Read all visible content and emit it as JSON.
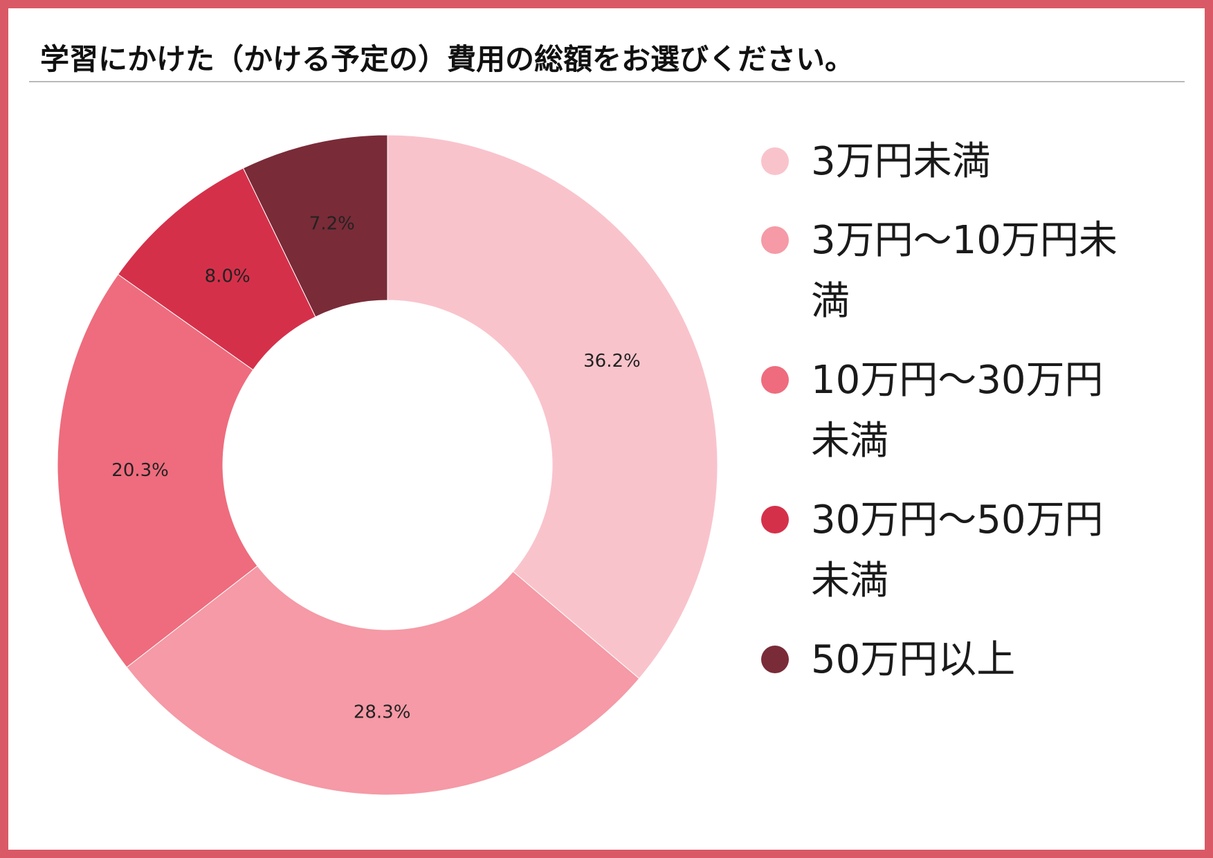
{
  "title": "学習にかけた（かける予定の）費用の総額をお選びください。",
  "chart_data": {
    "type": "pie",
    "donut": true,
    "categories": [
      "3万円未満",
      "3万円～10万円未満",
      "10万円～30万円未満",
      "30万円～50万円未満",
      "50万円以上"
    ],
    "values": [
      36.2,
      28.3,
      20.3,
      8.0,
      7.2
    ],
    "labels": [
      "36.2%",
      "28.3%",
      "20.3%",
      "8.0%",
      "7.2%"
    ],
    "colors": [
      "#f9c3cb",
      "#f59aa6",
      "#ee6c7d",
      "#d5304a",
      "#7a2b38"
    ],
    "legend_position": "right",
    "unit": "%"
  }
}
